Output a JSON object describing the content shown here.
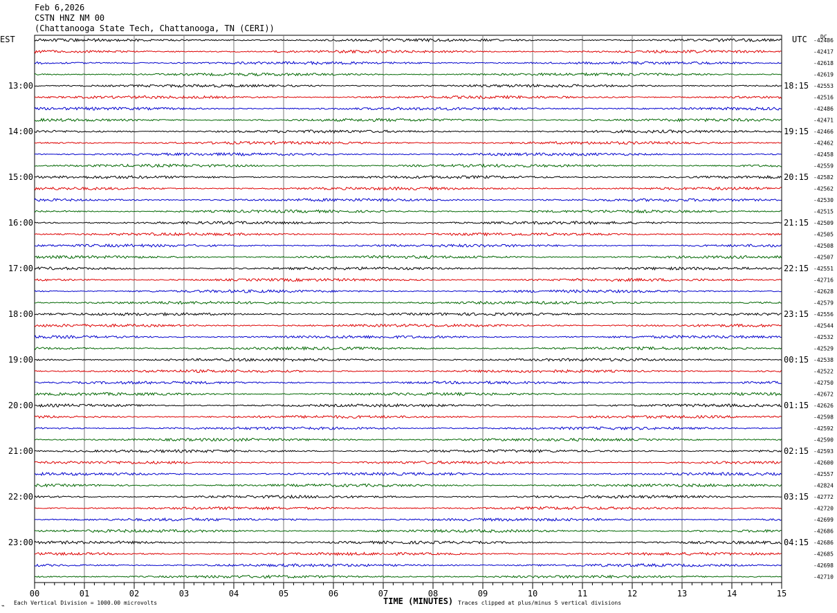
{
  "header": {
    "date": "Feb 6,2026",
    "station": "CSTN HNZ NM 00",
    "location": "(Chattanooga State Tech, Chattanooga, TN (CERI))"
  },
  "footer": {
    "scale_note": "Each Vertical Division = 1000.00 microvolts",
    "clip_note": "Traces clipped at plus/minus 5 vertical divisions",
    "x_title": "TIME (MINUTES)"
  },
  "chart_data": {
    "type": "line",
    "title": "CSTN HNZ NM 00",
    "left_axis_label": "EST",
    "right_axis_label": "UTC",
    "dc_label": "DC",
    "xlabel": "TIME (MINUTES)",
    "xlim": [
      0,
      15
    ],
    "x_ticks": [
      "00",
      "01",
      "02",
      "03",
      "04",
      "05",
      "06",
      "07",
      "08",
      "09",
      "10",
      "11",
      "12",
      "13",
      "14",
      "15"
    ],
    "est_hour_labels": [
      "13:00",
      "14:00",
      "15:00",
      "16:00",
      "17:00",
      "18:00",
      "19:00",
      "20:00",
      "21:00",
      "22:00",
      "23:00"
    ],
    "utc_hour_labels": [
      "18:15",
      "19:15",
      "20:15",
      "21:15",
      "22:15",
      "23:15",
      "00:15",
      "01:15",
      "02:15",
      "03:15",
      "04:15"
    ],
    "trace_colors": [
      "#000000",
      "#dd0000",
      "#0000cc",
      "#006600"
    ],
    "dc_offsets": [
      -42486,
      -42417,
      -42618,
      -42619,
      -42553,
      -42516,
      -42486,
      -42471,
      -42466,
      -42462,
      -42458,
      -42559,
      -42582,
      -42562,
      -42530,
      -42515,
      -42509,
      -42505,
      -42508,
      -42507,
      -42551,
      -42716,
      -42628,
      -42579,
      -42556,
      -42544,
      -42532,
      -42529,
      -42538,
      -42522,
      -42750,
      -42672,
      -42626,
      -42598,
      -42592,
      -42590,
      -42593,
      -42600,
      -42557,
      -42824,
      -42772,
      -42720,
      -42699,
      -42686,
      -42686,
      -42685,
      -42698,
      -42710
    ]
  }
}
